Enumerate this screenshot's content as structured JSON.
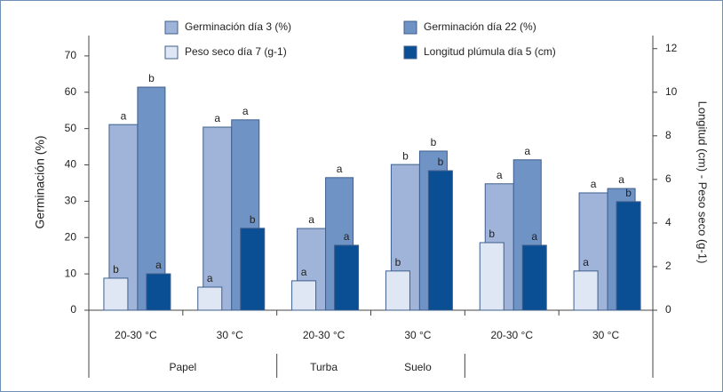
{
  "chart_data": {
    "type": "bar",
    "ylabel": "Germinación (%)",
    "y2label": "Longitud (cm) - Peso seco (g-1)",
    "categories": [
      "20-30 °C",
      "30 °C",
      "20-30 °C",
      "30 °C",
      "20-30 °C",
      "30 °C"
    ],
    "groups": [
      {
        "label": "Papel",
        "categories": [
          0,
          1
        ]
      },
      {
        "label": "Turba",
        "categories": [
          2
        ]
      },
      {
        "label": "Suelo",
        "categories": [
          3
        ]
      }
    ],
    "series": [
      {
        "name": "Germinación día 3 (%)",
        "color": "#9fb4d8",
        "axis": "y",
        "values": [
          51.1,
          50.4,
          22.5,
          40.1,
          34.8,
          32.3
        ],
        "letters": [
          "a",
          "a",
          "a",
          "b",
          "a",
          "a"
        ]
      },
      {
        "name": "Germinación día 22 (%)",
        "color": "#7093c5",
        "axis": "y",
        "values": [
          61.4,
          52.4,
          36.5,
          43.8,
          41.4,
          33.5
        ],
        "letters": [
          "b",
          "a",
          "a",
          "b",
          "a",
          "a"
        ]
      },
      {
        "name": "Peso seco día 7 (g-1)",
        "color": "#dfe7f4",
        "axis": "y2",
        "values": [
          1.47,
          1.06,
          1.35,
          1.8,
          3.1,
          1.8
        ],
        "letters": [
          "b",
          "a",
          "a",
          "b",
          "b",
          "a"
        ]
      },
      {
        "name": "Longitud plúmula día 5 (cm)",
        "color": "#0a4f94",
        "axis": "y2",
        "values": [
          1.67,
          3.76,
          2.98,
          6.4,
          2.98,
          4.98
        ],
        "letters": [
          "a",
          "b",
          "a",
          "b",
          "a",
          "b"
        ]
      }
    ],
    "ylim": [
      0,
      75.6
    ],
    "yticks": [
      0,
      10,
      20,
      30,
      40,
      50,
      60,
      70
    ],
    "y2lim": [
      0,
      12.6
    ],
    "y2ticks": [
      0,
      2,
      4,
      6,
      8,
      10,
      12
    ]
  }
}
